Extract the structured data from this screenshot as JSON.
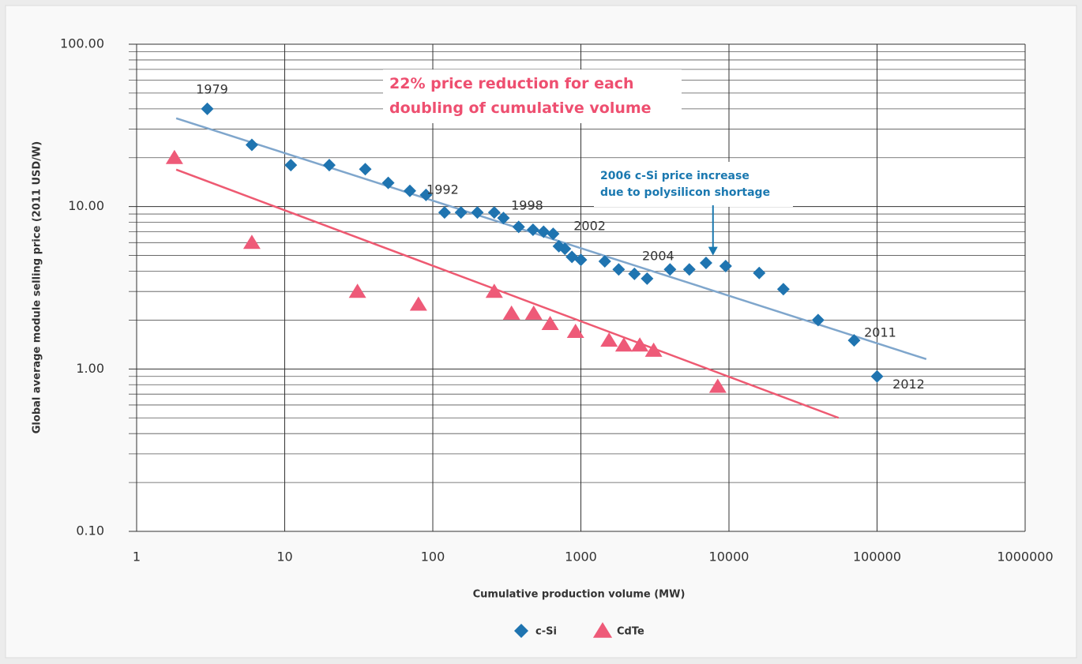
{
  "chart_data": {
    "type": "scatter",
    "x_label": "Cumulative production volume (MW)",
    "y_label": "Global average module selling price (2011 USD/W)",
    "log_x": true,
    "log_y": true,
    "xlim": [
      1,
      1000000
    ],
    "ylim": [
      0.1,
      100
    ],
    "xticks": [
      1,
      10,
      100,
      1000,
      10000,
      100000,
      1000000
    ],
    "yticks": [
      {
        "value": 0.1,
        "label": "0.10"
      },
      {
        "value": 1,
        "label": "1.00"
      },
      {
        "value": 10,
        "label": "10.00"
      },
      {
        "value": 100,
        "label": "100.00"
      }
    ],
    "grid": true,
    "legend": "bottom",
    "series": [
      {
        "name": "c-Si",
        "color": "#1f74b0",
        "marker": "diamond",
        "x": [
          3,
          6,
          11,
          20,
          35,
          50,
          70,
          90,
          120,
          155,
          200,
          260,
          300,
          380,
          475,
          560,
          650,
          710,
          780,
          870,
          1000,
          1450,
          1800,
          2300,
          2800,
          4000,
          5400,
          7000,
          9500,
          16000,
          23300,
          40000,
          70000,
          100000
        ],
        "values": [
          40,
          24,
          18,
          18,
          17,
          14,
          12.5,
          11.8,
          9.2,
          9.2,
          9.2,
          9.2,
          8.5,
          7.5,
          7.2,
          7.0,
          6.8,
          5.7,
          5.5,
          4.9,
          4.7,
          4.6,
          4.1,
          3.85,
          3.6,
          4.1,
          4.1,
          4.5,
          4.3,
          3.9,
          3.1,
          2.0,
          1.5,
          0.9
        ]
      },
      {
        "name": "CdTe",
        "color": "#ee5a78",
        "marker": "triangle",
        "x": [
          1.8,
          6,
          31,
          80,
          260,
          340,
          480,
          620,
          920,
          1550,
          1950,
          2500,
          3100,
          8400
        ],
        "values": [
          20,
          6.0,
          3.0,
          2.5,
          3.0,
          2.2,
          2.2,
          1.9,
          1.7,
          1.5,
          1.4,
          1.4,
          1.3,
          0.78
        ]
      }
    ],
    "trendlines": [
      {
        "color": "#7fa6cc",
        "x": [
          1.85,
          215000
        ],
        "values": [
          35,
          1.15
        ]
      },
      {
        "color": "#ee5a72",
        "x": [
          1.85,
          55000
        ],
        "values": [
          16.9,
          0.5
        ]
      }
    ],
    "point_labels": [
      {
        "text": "1979",
        "series": 0,
        "index": 0
      },
      {
        "text": "1992",
        "series": 0,
        "index": 7
      },
      {
        "text": "1998",
        "series": 0,
        "index": 12
      },
      {
        "text": "2002",
        "series": 0,
        "index": 17
      },
      {
        "text": "2004",
        "series": 0,
        "index": 24
      },
      {
        "text": "2011",
        "series": 0,
        "index": 32
      },
      {
        "text": "2012",
        "series": 0,
        "index": 33
      }
    ],
    "annotations": [
      {
        "lines": [
          "22% price reduction for each",
          "doubling of cumulative volume"
        ],
        "color": "#ee4f70"
      },
      {
        "lines": [
          "2006 c-Si price increase",
          "due to polysilicon shortage"
        ],
        "color": "#1a78b0",
        "arrow_to": {
          "x": 7800,
          "y": 5
        }
      }
    ]
  }
}
